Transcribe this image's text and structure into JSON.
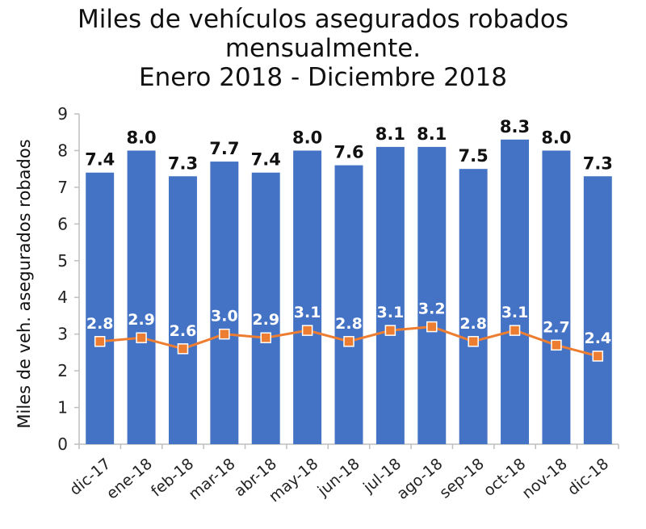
{
  "title_lines": [
    "Miles de vehículos asegurados robados",
    "mensualmente.",
    "Enero  2018 - Diciembre  2018"
  ],
  "chart_data": {
    "type": "bar",
    "title": "Miles de vehículos asegurados robados mensualmente. Enero 2018 - Diciembre 2018",
    "ylabel": "Miles de veh. asegurados robados",
    "xlabel": "",
    "ylim": [
      0,
      9
    ],
    "yticks": [
      0,
      1,
      2,
      3,
      4,
      5,
      6,
      7,
      8,
      9
    ],
    "categories": [
      "dic-17",
      "ene-18",
      "feb-18",
      "mar-18",
      "abr-18",
      "may-18",
      "jun-18",
      "jul-18",
      "ago-18",
      "sep-18",
      "oct-18",
      "nov-18",
      "dic-18"
    ],
    "series": [
      {
        "type": "bar",
        "color": "#4472C4",
        "values": [
          7.4,
          8.0,
          7.3,
          7.7,
          7.4,
          8.0,
          7.6,
          8.1,
          8.1,
          7.5,
          8.3,
          8.0,
          7.3
        ]
      },
      {
        "type": "line",
        "color": "#ED7D31",
        "values": [
          2.8,
          2.9,
          2.6,
          3.0,
          2.9,
          3.1,
          2.8,
          3.1,
          3.2,
          2.8,
          3.1,
          2.7,
          2.4
        ]
      }
    ],
    "bar_labels": [
      "7.4",
      "8.0",
      "7.3",
      "7.7",
      "7.4",
      "8.0",
      "7.6",
      "8.1",
      "8.1",
      "7.5",
      "8.3",
      "8.0",
      "7.3"
    ],
    "line_labels": [
      "2.8",
      "2.9",
      "2.6",
      "3.0",
      "2.9",
      "3.1",
      "2.8",
      "3.1",
      "3.2",
      "2.8",
      "3.1",
      "2.7",
      "2.4"
    ],
    "grid": false,
    "legend": "none"
  }
}
